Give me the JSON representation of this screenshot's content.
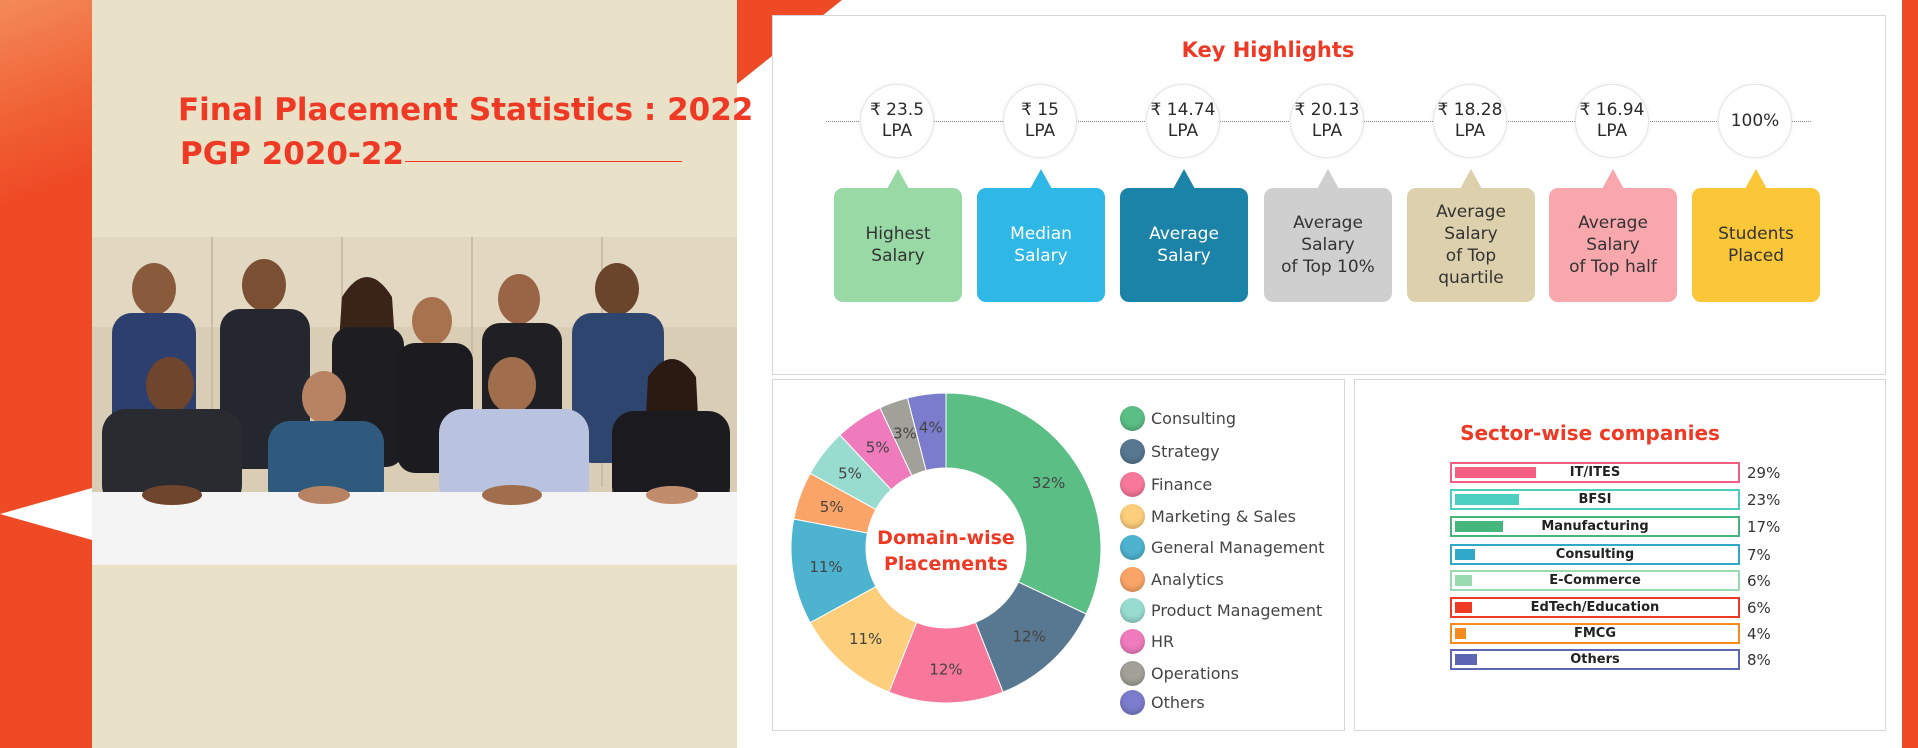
{
  "title": {
    "line1": "Final Placement Statistics : 2022",
    "line2": "PGP 2020-22"
  },
  "photo": {
    "caption": "Group photo of placement committee members"
  },
  "key_highlights": {
    "title": "Key Highlights",
    "items": [
      {
        "value": "₹ 23.5",
        "unit": "LPA",
        "label": "Highest Salary",
        "color": "#98d9a6",
        "text_color": "#333333"
      },
      {
        "value": "₹ 15",
        "unit": "LPA",
        "label": "Median Salary",
        "color": "#2fb7e6",
        "text_color": "#ffffff"
      },
      {
        "value": "₹ 14.74",
        "unit": "LPA",
        "label": "Average Salary",
        "color": "#1b82a8",
        "text_color": "#ffffff"
      },
      {
        "value": "₹ 20.13",
        "unit": "LPA",
        "label": "Average Salary\nof Top 10%",
        "color": "#cfcfcf",
        "text_color": "#333333"
      },
      {
        "value": "₹ 18.28",
        "unit": "LPA",
        "label": "Average Salary\nof Top quartile",
        "color": "#ddd1ad",
        "text_color": "#333333"
      },
      {
        "value": "₹ 16.94",
        "unit": "LPA",
        "label": "Average Salary\nof Top half",
        "color": "#f8a7ad",
        "text_color": "#333333"
      },
      {
        "value": "100%",
        "unit": "",
        "label": "Students\nPlaced",
        "color": "#fbc637",
        "text_color": "#333333"
      }
    ]
  },
  "chart_data": [
    {
      "type": "pie",
      "title": "Domain-wise Placements",
      "categories": [
        "Consulting",
        "Strategy",
        "Finance",
        "Marketing & Sales",
        "General Management",
        "Analytics",
        "Product Management",
        "HR",
        "Operations",
        "Others"
      ],
      "values": [
        32,
        12,
        12,
        11,
        11,
        5,
        5,
        5,
        3,
        4
      ],
      "value_labels": [
        "32%",
        "12%",
        "12%",
        "11%",
        "11%",
        "5%",
        "5%",
        "5%",
        "3%",
        "4%"
      ],
      "colors": [
        "#5bbf85",
        "#587790",
        "#f7789a",
        "#fdce7c",
        "#4db3cf",
        "#fba467",
        "#98dbcf",
        "#ef7bbd",
        "#a1a199",
        "#7b7ccc"
      ],
      "legend_position": "right"
    },
    {
      "type": "bar",
      "title": "Sector-wise companies",
      "categories": [
        "IT/ITES",
        "BFSI",
        "Manufacturing",
        "Consulting",
        "E-Commerce",
        "EdTech/Education",
        "FMCG",
        "Others"
      ],
      "values": [
        29,
        23,
        17,
        7,
        6,
        6,
        4,
        8
      ],
      "value_labels": [
        "29%",
        "23%",
        "17%",
        "7%",
        "6%",
        "6%",
        "4%",
        "8%"
      ],
      "colors": [
        "#f25f82",
        "#4ccfc0",
        "#46b57c",
        "#2fa8c9",
        "#98dbb0",
        "#ee3a24",
        "#f58a1f",
        "#5d66b3"
      ],
      "xlim": [
        0,
        100
      ]
    }
  ]
}
